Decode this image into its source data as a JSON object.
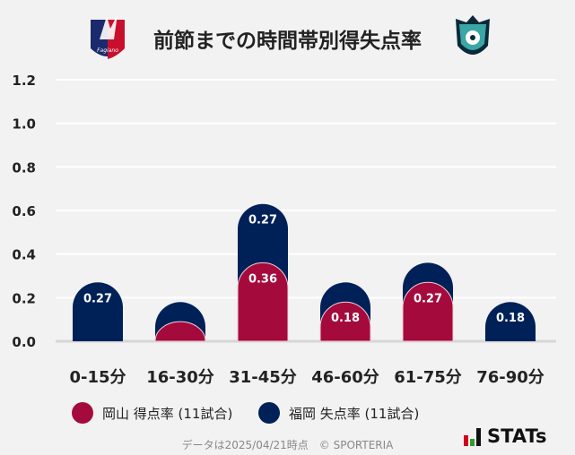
{
  "title": "前節までの時間帯別得失点率",
  "logos": {
    "left": "Fagiano Okayama",
    "right": "Avispa Fukuoka"
  },
  "chart_data": {
    "type": "bar",
    "stacked": true,
    "categories": [
      "0-15分",
      "16-30分",
      "31-45分",
      "46-60分",
      "61-75分",
      "76-90分"
    ],
    "series": [
      {
        "name": "岡山 得点率 (11試合)",
        "color": "#a50a3c",
        "values": [
          0,
          0.09,
          0.36,
          0.18,
          0.27,
          0
        ],
        "labels": [
          "",
          "",
          "0.36",
          "0.18",
          "0.27",
          ""
        ]
      },
      {
        "name": "福岡 失点率 (11試合)",
        "color": "#002058",
        "values": [
          0.27,
          0.09,
          0.27,
          0.09,
          0.09,
          0.18
        ],
        "labels": [
          "0.27",
          "",
          "0.27",
          "",
          "",
          "0.18"
        ]
      }
    ],
    "yticks": [
      "0.0",
      "0.2",
      "0.4",
      "0.6",
      "0.8",
      "1.0",
      "1.2"
    ],
    "ylim": [
      0,
      1.2
    ],
    "grid": true,
    "legend_placement": "bottom"
  },
  "footer": "データは2025/04/21時点　© SPORTERIA",
  "brand": "STATs"
}
